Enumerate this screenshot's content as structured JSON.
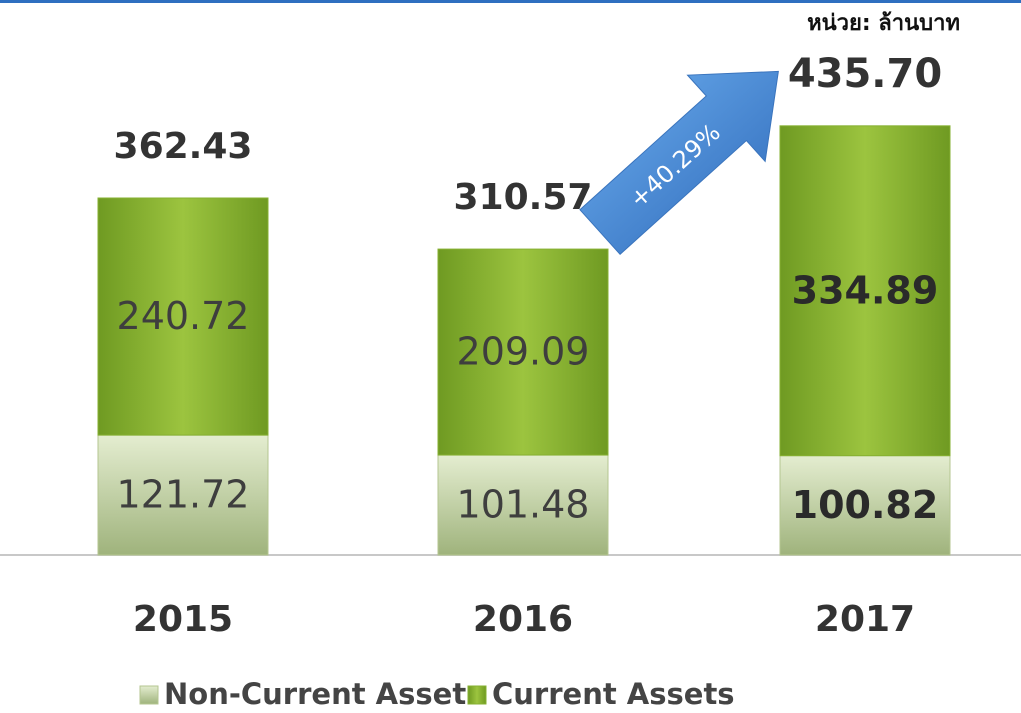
{
  "chart_data": {
    "type": "stacked-bar",
    "unit_note": "หน่วย: ล้านบาท",
    "categories": [
      "2015",
      "2016",
      "2017"
    ],
    "series": [
      {
        "name": "Non-Current Assets",
        "color": "#b4c690",
        "values": [
          121.72,
          101.48,
          100.82
        ]
      },
      {
        "name": "Current Assets",
        "color": "#86b031",
        "values": [
          240.72,
          209.09,
          334.89
        ]
      }
    ],
    "totals": {
      "values": [
        362.43,
        310.57,
        435.7
      ],
      "value_labels": [
        "362.43",
        "310.57",
        "435.70"
      ]
    },
    "annotation": "+40.29%"
  }
}
